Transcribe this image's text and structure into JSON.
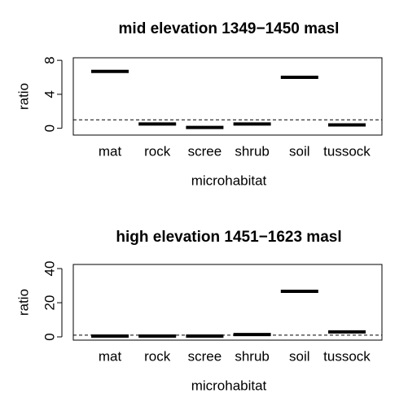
{
  "chart_data": [
    {
      "type": "segment",
      "title": "mid elevation 1349−1450 masl",
      "x_label": "microhabitat",
      "y_label": "ratio",
      "categories": [
        "mat",
        "rock",
        "scree",
        "shrub",
        "soil",
        "tussock"
      ],
      "values": [
        6.7,
        0.5,
        0.1,
        0.5,
        6.0,
        0.4
      ],
      "color": "#000000",
      "ylim": [
        -0.8,
        8.3
      ],
      "yticks": [
        0,
        4,
        8
      ],
      "reference_line": 1
    },
    {
      "type": "segment",
      "title": "high elevation 1451−1623 masl",
      "x_label": "microhabitat",
      "y_label": "ratio",
      "categories": [
        "mat",
        "rock",
        "scree",
        "shrub",
        "soil",
        "tussock"
      ],
      "values": [
        0.5,
        0.5,
        0.5,
        1.4,
        26.7,
        2.9
      ],
      "color": "#000000",
      "ylim": [
        -1.9,
        42.4
      ],
      "yticks": [
        0,
        20,
        40
      ],
      "reference_line": 1
    }
  ]
}
